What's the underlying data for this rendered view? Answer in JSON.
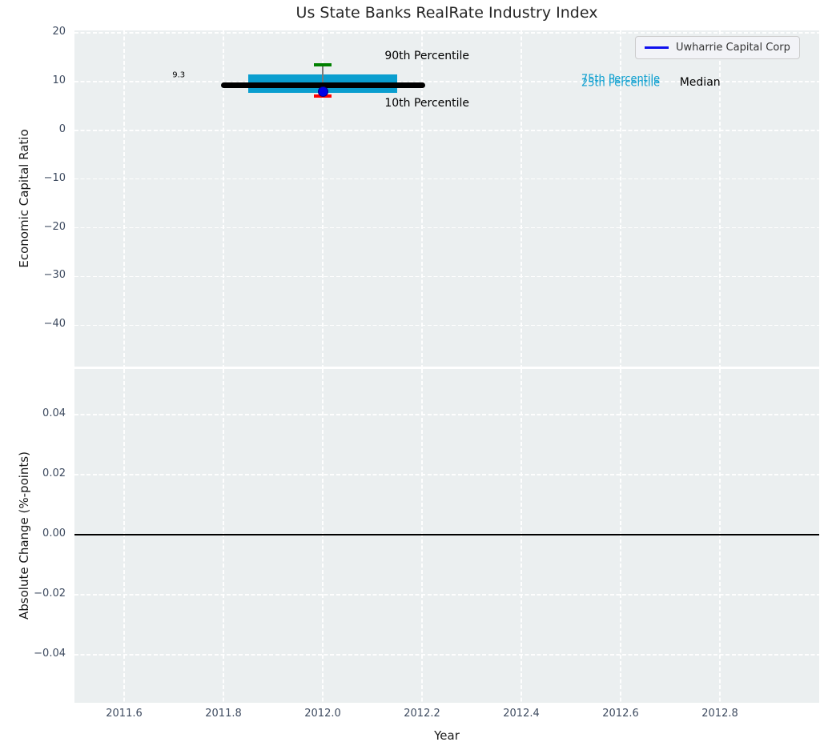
{
  "chart_data": {
    "type": "box",
    "title": "Us State Banks RealRate Industry Index",
    "xlabel": "Year",
    "xlim": [
      2011.5,
      2013.0
    ],
    "xticks": [
      {
        "v": 2011.6,
        "label": "2011.6"
      },
      {
        "v": 2011.8,
        "label": "2011.8"
      },
      {
        "v": 2012.0,
        "label": "2012.0"
      },
      {
        "v": 2012.2,
        "label": "2012.2"
      },
      {
        "v": 2012.4,
        "label": "2012.4"
      },
      {
        "v": 2012.6,
        "label": "2012.6"
      },
      {
        "v": 2012.8,
        "label": "2012.8"
      }
    ],
    "grid": true,
    "legend": {
      "label": "Uwharrie Capital Corp",
      "line_color": "#0f0fee",
      "position": "upper right"
    },
    "background_color": "#ebeff0",
    "subplots": [
      {
        "ylabel": "Economic Capital Ratio",
        "ylim": [
          -48.5,
          20.5
        ],
        "yticks": [
          {
            "v": 20,
            "label": "20"
          },
          {
            "v": 10,
            "label": "10"
          },
          {
            "v": 0,
            "label": "0"
          },
          {
            "v": -10,
            "label": "−10"
          },
          {
            "v": -20,
            "label": "−20"
          },
          {
            "v": -30,
            "label": "−30"
          },
          {
            "v": -40,
            "label": "−40"
          }
        ],
        "box": {
          "x_center": 2012.0,
          "x_left": 2011.85,
          "x_right": 2012.15,
          "median": 9.3,
          "median_line_x": [
            2011.8,
            2012.2
          ],
          "p25": 7.7,
          "p75": 11.5,
          "p10": 7.0,
          "p90": 13.4,
          "cap_half_width": 0.018,
          "box_color": "#0a9ecf",
          "median_color": "#000000",
          "whisker_color": "#7a7a7a",
          "p90_cap_color": "#008000",
          "p10_cap_color": "#ff0000"
        },
        "company_point": {
          "name": "Uwharrie Capital Corp",
          "x": 2012.0,
          "y": 7.9,
          "color": "#0000e8",
          "edge_color": "#000080"
        },
        "annotations": [
          {
            "slug": "median-value",
            "text": "9.3",
            "x": 2011.71,
            "y": 11.3,
            "color": "#000000",
            "size": 10
          },
          {
            "slug": "p90-label",
            "text": "90th Percentile",
            "x": 2012.21,
            "y": 15.2,
            "color": "#000000",
            "size": 14
          },
          {
            "slug": "p10-label",
            "text": "10th Percentile",
            "x": 2012.21,
            "y": 5.6,
            "color": "#000000",
            "size": 14
          },
          {
            "slug": "p75-label",
            "text": "75th Percentile",
            "x": 2012.6,
            "y": 10.4,
            "color": "#0a9ecf",
            "size": 13
          },
          {
            "slug": "p25-label",
            "text": "25th Percentile",
            "x": 2012.6,
            "y": 9.6,
            "color": "#0a9ecf",
            "size": 13
          },
          {
            "slug": "median-label",
            "text": "Median",
            "x": 2012.76,
            "y": 9.9,
            "color": "#000000",
            "size": 14
          }
        ]
      },
      {
        "ylabel": "Absolute Change (%-points)",
        "ylim": [
          -0.056,
          0.0552
        ],
        "yticks": [
          {
            "v": 0.04,
            "label": "0.04"
          },
          {
            "v": 0.02,
            "label": "0.02"
          },
          {
            "v": 0.0,
            "label": "0.00"
          },
          {
            "v": -0.02,
            "label": "−0.02"
          },
          {
            "v": -0.04,
            "label": "−0.04"
          }
        ],
        "zero_line": {
          "y": 0.0,
          "color": "#000000"
        }
      }
    ]
  }
}
